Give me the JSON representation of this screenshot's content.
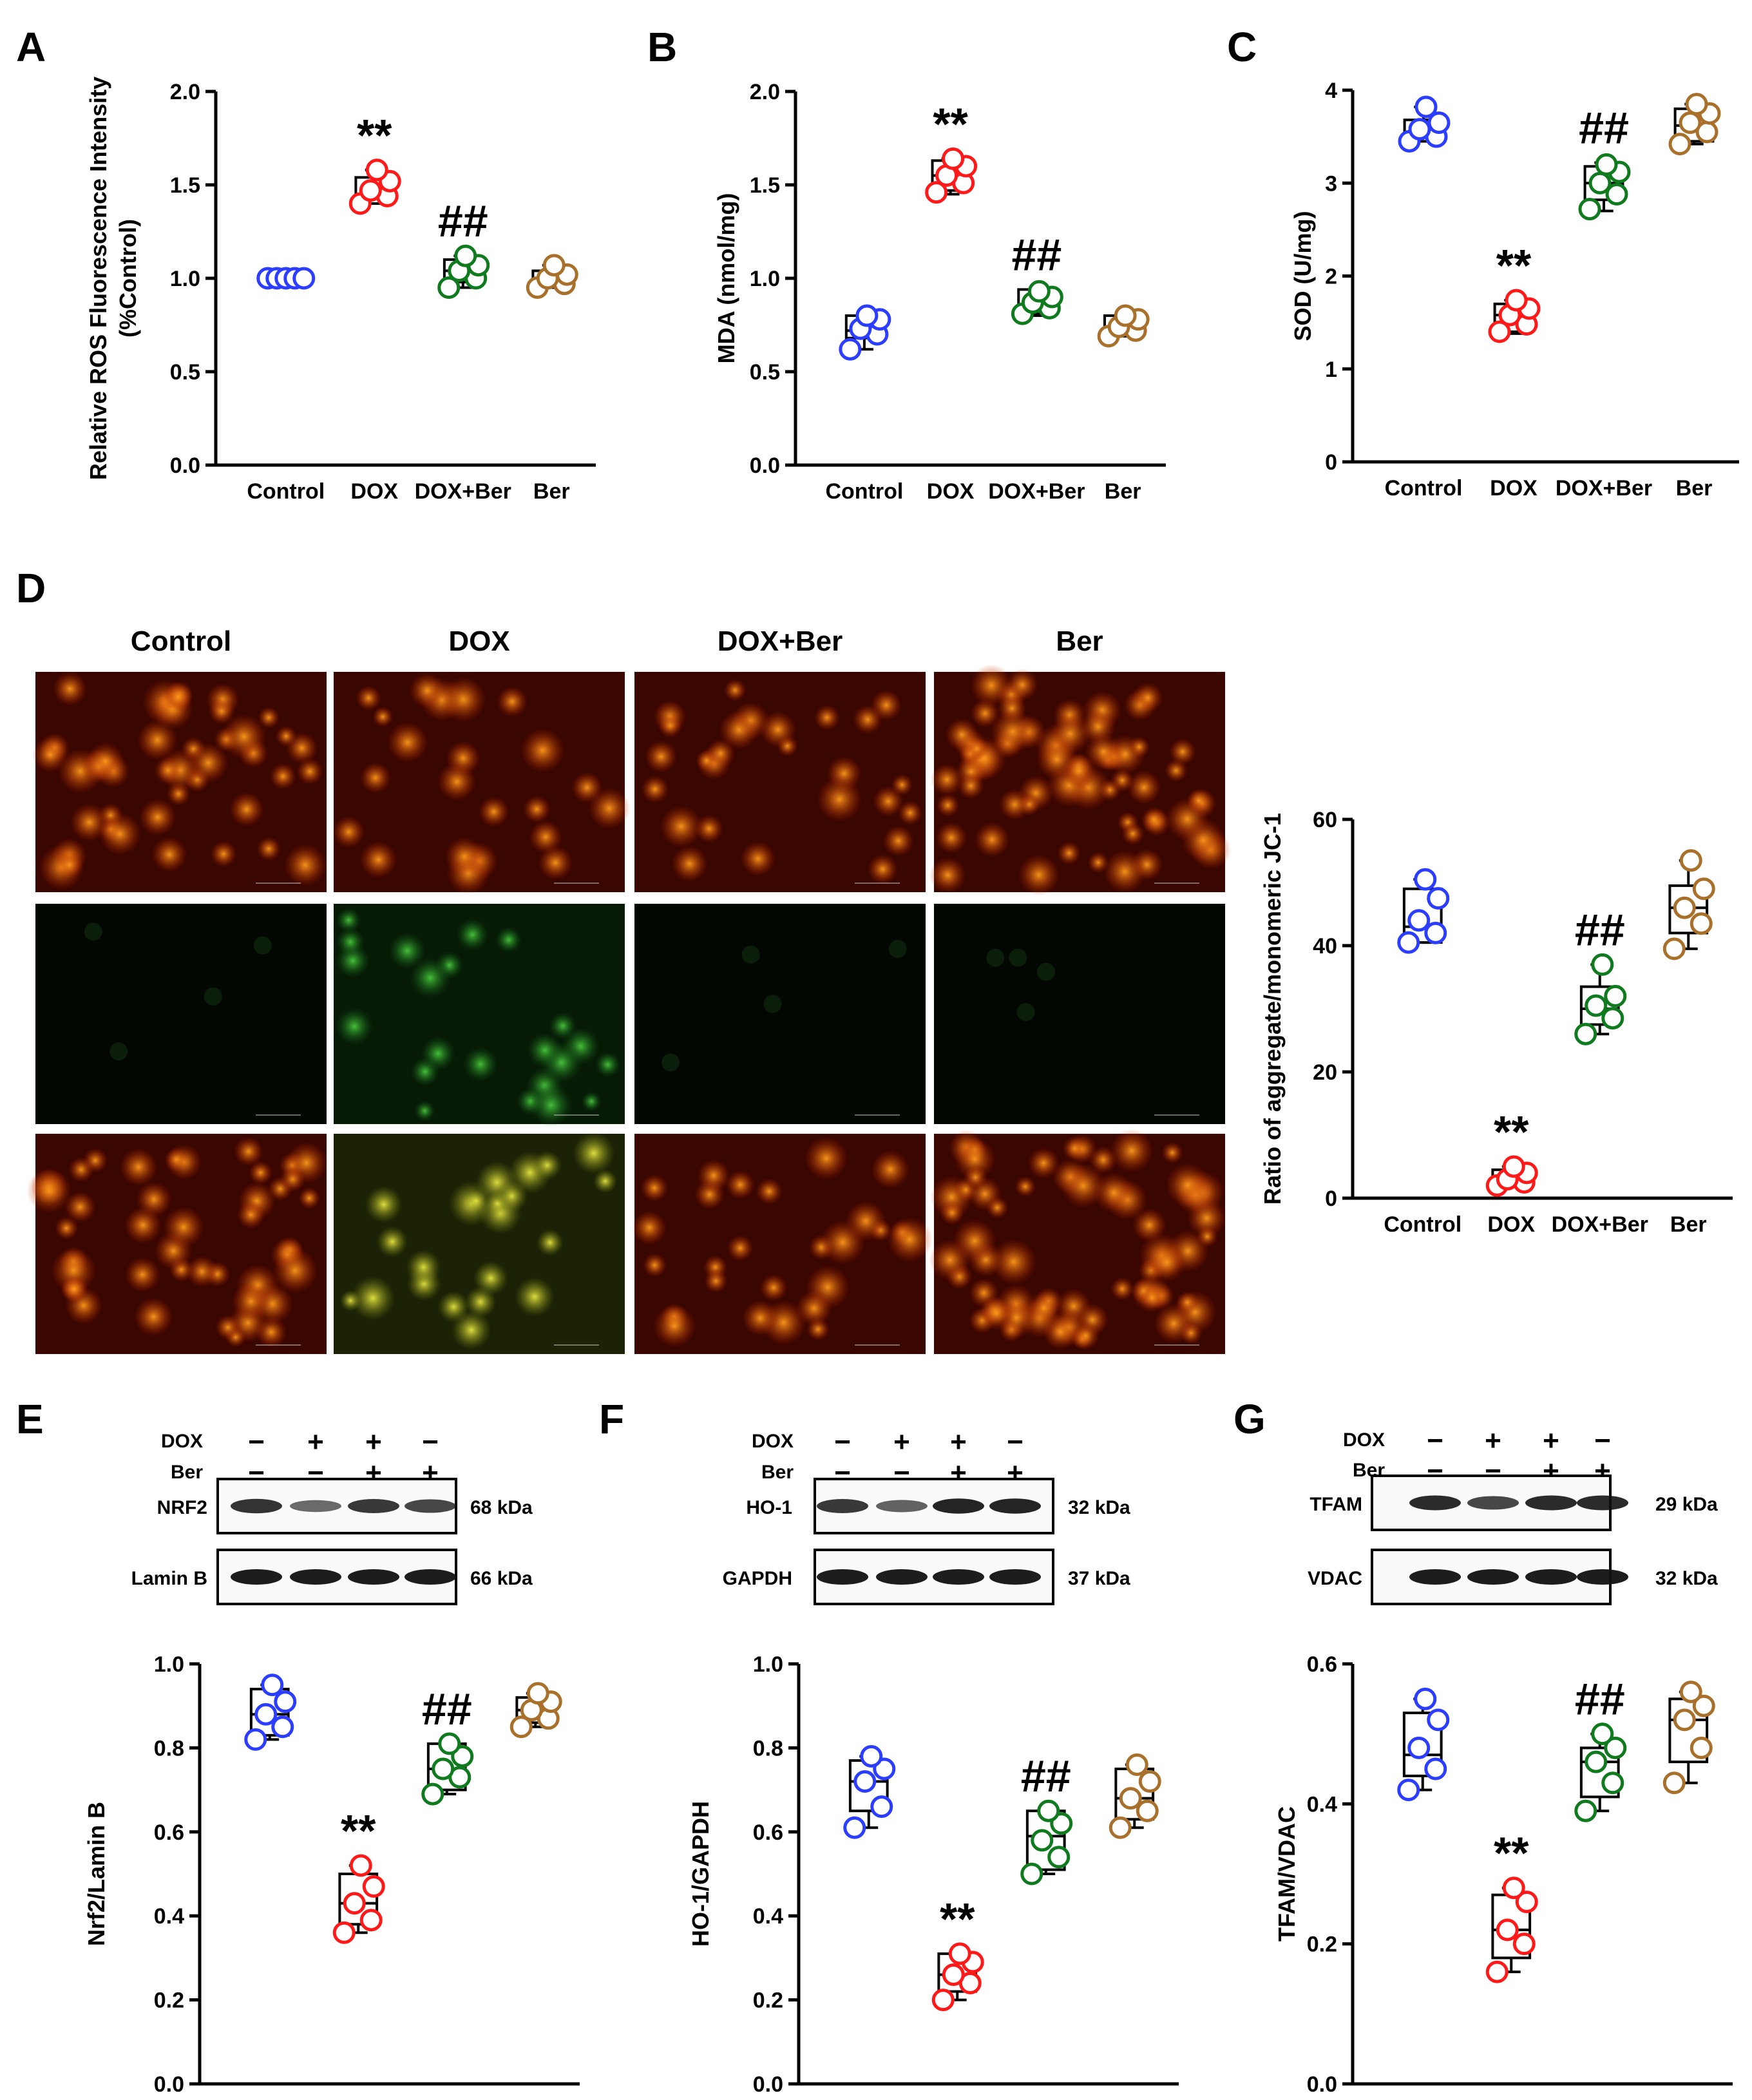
{
  "panels": [
    {
      "id": "A",
      "type": "box"
    },
    {
      "id": "B",
      "type": "box"
    },
    {
      "id": "C",
      "type": "box"
    },
    {
      "id": "D",
      "type": "micrographs+box"
    },
    {
      "id": "E",
      "type": "blot+box"
    },
    {
      "id": "F",
      "type": "blot+box"
    },
    {
      "id": "G",
      "type": "blot+box"
    }
  ],
  "colors": {
    "Control": "#2b3dff",
    "DOX": "#ff1a1a",
    "DOX+Ber": "#0f7a1e",
    "Ber": "#a8702a"
  },
  "micrograph_columns": [
    "Control",
    "DOX",
    "DOX+Ber",
    "Ber"
  ],
  "blots": {
    "E": {
      "row_labels": [
        "DOX",
        "Ber"
      ],
      "signs": [
        [
          "−",
          "+",
          "+",
          "−"
        ],
        [
          "−",
          "−",
          "+",
          "+"
        ]
      ],
      "bands": [
        {
          "name": "NRF2",
          "kda": "68 kDa",
          "intensity": [
            0.85,
            0.45,
            0.8,
            0.7
          ]
        },
        {
          "name": "Lamin B",
          "kda": "66 kDa",
          "intensity": [
            1,
            1,
            1,
            1
          ]
        }
      ]
    },
    "F": {
      "row_labels": [
        "DOX",
        "Ber"
      ],
      "signs": [
        [
          "−",
          "+",
          "+",
          "−"
        ],
        [
          "−",
          "−",
          "+",
          "+"
        ]
      ],
      "bands": [
        {
          "name": "HO-1",
          "kda": "32 kDa",
          "intensity": [
            0.8,
            0.5,
            0.95,
            0.95
          ]
        },
        {
          "name": "GAPDH",
          "kda": "37 kDa",
          "intensity": [
            1,
            1,
            1,
            1
          ]
        }
      ]
    },
    "G": {
      "row_labels": [
        "DOX",
        "Ber"
      ],
      "signs": [
        [
          "−",
          "+",
          "+",
          "−"
        ],
        [
          "−",
          "−",
          "+",
          "+"
        ]
      ],
      "bands": [
        {
          "name": "TFAM",
          "kda": "29 kDa",
          "intensity": [
            0.9,
            0.7,
            0.9,
            0.9
          ]
        },
        {
          "name": "VDAC",
          "kda": "32 kDa",
          "intensity": [
            1,
            1,
            1,
            1
          ]
        }
      ]
    }
  },
  "chart_data": [
    {
      "panel": "A",
      "type": "box",
      "ylabel": "Relative ROS Fluorescence Intensity (%Control)",
      "categories": [
        "Control",
        "DOX",
        "DOX+Ber",
        "Ber"
      ],
      "ylim": [
        0,
        2.0
      ],
      "yticks": [
        "0.0",
        "0.5",
        "1.0",
        "1.5",
        "2.0"
      ],
      "boxes": [
        {
          "q1": 1.0,
          "q3": 1.0,
          "med": 1.0,
          "min": 1.0,
          "max": 1.0,
          "points": [
            1.0,
            1.0,
            1.0,
            1.0,
            1.0
          ]
        },
        {
          "q1": 1.4,
          "q3": 1.54,
          "med": 1.45,
          "min": 1.4,
          "max": 1.58,
          "points": [
            1.4,
            1.44,
            1.47,
            1.52,
            1.58
          ]
        },
        {
          "q1": 0.98,
          "q3": 1.1,
          "med": 1.04,
          "min": 0.95,
          "max": 1.12,
          "points": [
            0.95,
            1.0,
            1.04,
            1.07,
            1.12
          ]
        },
        {
          "q1": 0.96,
          "q3": 1.04,
          "med": 0.99,
          "min": 0.95,
          "max": 1.07,
          "points": [
            0.95,
            0.97,
            1.0,
            1.02,
            1.07
          ]
        }
      ],
      "sig": [
        "",
        "**",
        "##",
        ""
      ]
    },
    {
      "panel": "B",
      "type": "box",
      "ylabel": "MDA (nmol/mg)",
      "categories": [
        "Control",
        "DOX",
        "DOX+Ber",
        "Ber"
      ],
      "ylim": [
        0,
        2.0
      ],
      "yticks": [
        "0.0",
        "0.5",
        "1.0",
        "1.5",
        "2.0"
      ],
      "boxes": [
        {
          "q1": 0.68,
          "q3": 0.8,
          "med": 0.72,
          "min": 0.62,
          "max": 0.8,
          "points": [
            0.62,
            0.7,
            0.73,
            0.78,
            0.8
          ]
        },
        {
          "q1": 1.47,
          "q3": 1.63,
          "med": 1.55,
          "min": 1.45,
          "max": 1.64,
          "points": [
            1.46,
            1.51,
            1.55,
            1.6,
            1.64
          ]
        },
        {
          "q1": 0.81,
          "q3": 0.94,
          "med": 0.86,
          "min": 0.8,
          "max": 0.94,
          "points": [
            0.81,
            0.84,
            0.87,
            0.9,
            0.93
          ]
        },
        {
          "q1": 0.69,
          "q3": 0.8,
          "med": 0.74,
          "min": 0.69,
          "max": 0.8,
          "points": [
            0.69,
            0.72,
            0.74,
            0.78,
            0.8
          ]
        }
      ],
      "sig": [
        "",
        "**",
        "##",
        ""
      ]
    },
    {
      "panel": "C",
      "type": "box",
      "ylabel": "SOD (U/mg)",
      "categories": [
        "Control",
        "DOX",
        "DOX+Ber",
        "Ber"
      ],
      "ylim": [
        0,
        4
      ],
      "yticks": [
        "0",
        "1",
        "2",
        "3",
        "4"
      ],
      "boxes": [
        {
          "q1": 3.45,
          "q3": 3.68,
          "med": 3.55,
          "min": 3.45,
          "max": 3.82,
          "points": [
            3.45,
            3.5,
            3.58,
            3.65,
            3.82
          ]
        },
        {
          "q1": 1.4,
          "q3": 1.7,
          "med": 1.58,
          "min": 1.38,
          "max": 1.74,
          "points": [
            1.4,
            1.48,
            1.58,
            1.65,
            1.74
          ]
        },
        {
          "q1": 2.82,
          "q3": 3.18,
          "med": 3.0,
          "min": 2.7,
          "max": 3.22,
          "points": [
            2.72,
            2.88,
            3.0,
            3.12,
            3.2
          ]
        },
        {
          "q1": 3.45,
          "q3": 3.8,
          "med": 3.62,
          "min": 3.42,
          "max": 3.85,
          "points": [
            3.42,
            3.55,
            3.65,
            3.75,
            3.85
          ]
        }
      ],
      "sig": [
        "",
        "**",
        "##",
        ""
      ]
    },
    {
      "panel": "D",
      "type": "box",
      "ylabel": "Ratio of aggregate/monomeric JC-1",
      "categories": [
        "Control",
        "DOX",
        "DOX+Ber",
        "Ber"
      ],
      "ylim": [
        0,
        60
      ],
      "yticks": [
        "0",
        "20",
        "40",
        "60"
      ],
      "boxes": [
        {
          "q1": 40.5,
          "q3": 49.0,
          "med": 43.0,
          "min": 40.5,
          "max": 50.5,
          "points": [
            40.5,
            42.0,
            44.0,
            47.5,
            50.5
          ]
        },
        {
          "q1": 2.0,
          "q3": 4.5,
          "med": 3.0,
          "min": 2.0,
          "max": 5.0,
          "points": [
            2.0,
            2.5,
            3.0,
            4.0,
            5.0
          ]
        },
        {
          "q1": 27.5,
          "q3": 33.5,
          "med": 30.0,
          "min": 26.0,
          "max": 37.0,
          "points": [
            26.0,
            28.5,
            30.5,
            32.0,
            37.0
          ]
        },
        {
          "q1": 42.0,
          "q3": 49.5,
          "med": 46.0,
          "min": 39.5,
          "max": 53.5,
          "points": [
            39.5,
            43.5,
            46.0,
            49.0,
            53.5
          ]
        }
      ],
      "sig": [
        "",
        "**",
        "##",
        ""
      ]
    },
    {
      "panel": "E",
      "type": "box",
      "ylabel": "Nrf2/Lamin B",
      "categories": [
        "Control",
        "DOX",
        "DOX+Ber",
        "Ber"
      ],
      "ylim": [
        0,
        1.0
      ],
      "yticks": [
        "0.0",
        "0.2",
        "0.4",
        "0.6",
        "0.8",
        "1.0"
      ],
      "boxes": [
        {
          "q1": 0.83,
          "q3": 0.94,
          "med": 0.88,
          "min": 0.82,
          "max": 0.95,
          "points": [
            0.82,
            0.85,
            0.88,
            0.91,
            0.95
          ]
        },
        {
          "q1": 0.38,
          "q3": 0.5,
          "med": 0.43,
          "min": 0.36,
          "max": 0.52,
          "points": [
            0.36,
            0.39,
            0.43,
            0.47,
            0.52
          ]
        },
        {
          "q1": 0.7,
          "q3": 0.81,
          "med": 0.75,
          "min": 0.69,
          "max": 0.81,
          "points": [
            0.69,
            0.73,
            0.75,
            0.78,
            0.81
          ]
        },
        {
          "q1": 0.86,
          "q3": 0.92,
          "med": 0.89,
          "min": 0.85,
          "max": 0.93,
          "points": [
            0.85,
            0.87,
            0.89,
            0.91,
            0.93
          ]
        }
      ],
      "sig": [
        "",
        "**",
        "##",
        ""
      ]
    },
    {
      "panel": "F",
      "type": "box",
      "ylabel": "HO-1/GAPDH",
      "categories": [
        "Control",
        "DOX",
        "DOX+Ber",
        "Ber"
      ],
      "ylim": [
        0,
        1.0
      ],
      "yticks": [
        "0.0",
        "0.2",
        "0.4",
        "0.6",
        "0.8",
        "1.0"
      ],
      "boxes": [
        {
          "q1": 0.65,
          "q3": 0.77,
          "med": 0.72,
          "min": 0.61,
          "max": 0.78,
          "points": [
            0.61,
            0.66,
            0.72,
            0.75,
            0.78
          ]
        },
        {
          "q1": 0.22,
          "q3": 0.31,
          "med": 0.26,
          "min": 0.2,
          "max": 0.31,
          "points": [
            0.2,
            0.24,
            0.26,
            0.29,
            0.31
          ]
        },
        {
          "q1": 0.51,
          "q3": 0.65,
          "med": 0.59,
          "min": 0.5,
          "max": 0.65,
          "points": [
            0.5,
            0.54,
            0.58,
            0.62,
            0.65
          ]
        },
        {
          "q1": 0.63,
          "q3": 0.75,
          "med": 0.68,
          "min": 0.61,
          "max": 0.76,
          "points": [
            0.61,
            0.65,
            0.68,
            0.72,
            0.76
          ]
        }
      ],
      "sig": [
        "",
        "**",
        "##",
        ""
      ]
    },
    {
      "panel": "G",
      "type": "box",
      "ylabel": "TFAM/VDAC",
      "categories": [
        "Control",
        "DOX",
        "DOX+Ber",
        "Ber"
      ],
      "ylim": [
        0,
        0.6
      ],
      "yticks": [
        "0.0",
        "0.2",
        "0.4",
        "0.6"
      ],
      "boxes": [
        {
          "q1": 0.44,
          "q3": 0.53,
          "med": 0.47,
          "min": 0.42,
          "max": 0.55,
          "points": [
            0.42,
            0.45,
            0.48,
            0.52,
            0.55
          ]
        },
        {
          "q1": 0.18,
          "q3": 0.27,
          "med": 0.22,
          "min": 0.16,
          "max": 0.28,
          "points": [
            0.16,
            0.2,
            0.22,
            0.26,
            0.28
          ]
        },
        {
          "q1": 0.41,
          "q3": 0.48,
          "med": 0.46,
          "min": 0.39,
          "max": 0.5,
          "points": [
            0.39,
            0.43,
            0.46,
            0.48,
            0.5
          ]
        },
        {
          "q1": 0.46,
          "q3": 0.55,
          "med": 0.52,
          "min": 0.43,
          "max": 0.56,
          "points": [
            0.43,
            0.48,
            0.52,
            0.54,
            0.56
          ]
        }
      ],
      "sig": [
        "",
        "**",
        "##",
        ""
      ]
    }
  ]
}
